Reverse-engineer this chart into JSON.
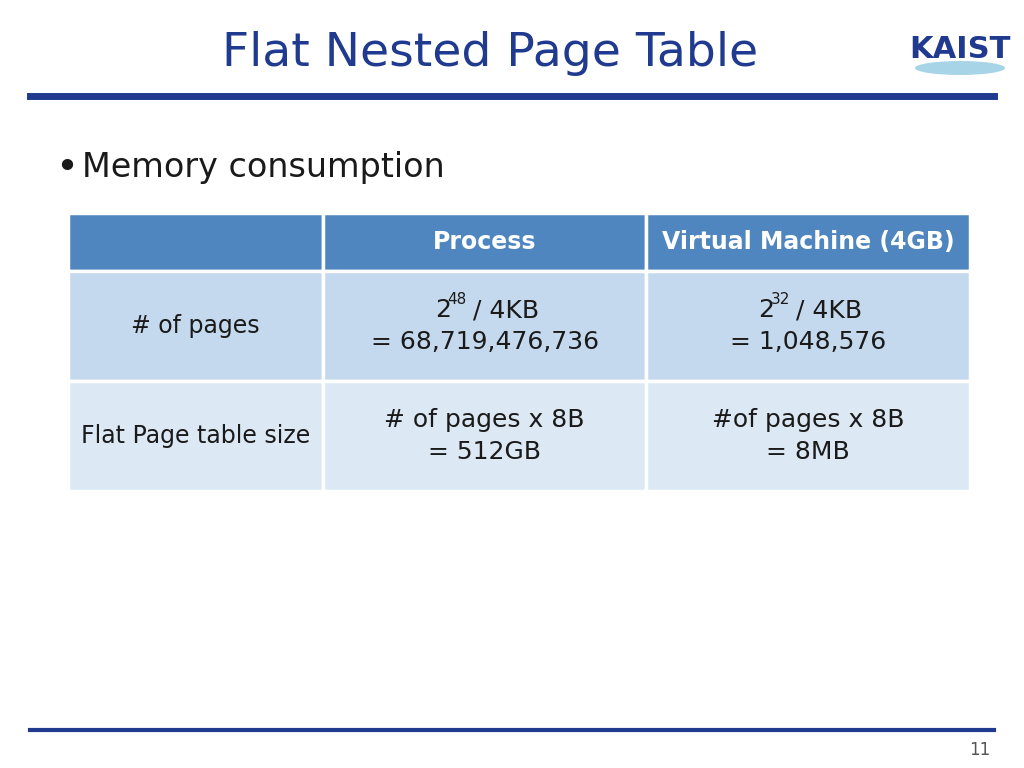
{
  "title": "Flat Nested Page Table",
  "title_color": "#1F3A8F",
  "title_fontsize": 34,
  "bg_color": "#FFFFFF",
  "header_line_color": "#1F3A8F",
  "bullet_text": "Memory consumption",
  "bullet_fontsize": 24,
  "bullet_color": "#1A1A1A",
  "table_header_bg": "#4F86C0",
  "table_header_text_color": "#FFFFFF",
  "table_row1_bg": "#C5D9EE",
  "table_row2_bg": "#DCE9F4",
  "table_border_color": "#FFFFFF",
  "table_text_color": "#1A1A1A",
  "col0_header": "",
  "col1_header": "Process",
  "col2_header": "Virtual Machine (4GB)",
  "row1_col0": "# of pages",
  "row1_col1_line2": "= 68,719,476,736",
  "row1_col2_line2": "= 1,048,576",
  "row2_col0": "Flat Page table size",
  "row2_col1_line1": "# of pages x 8B",
  "row2_col1_line2": "= 512GB",
  "row2_col2_line1": "#of pages x 8B",
  "row2_col2_line2": "= 8MB",
  "footer_line_color": "#1F3A8F",
  "page_number": "11",
  "kaist_text_color": "#1F3A8F",
  "kaist_ellipse_color": "#A8D4E8"
}
